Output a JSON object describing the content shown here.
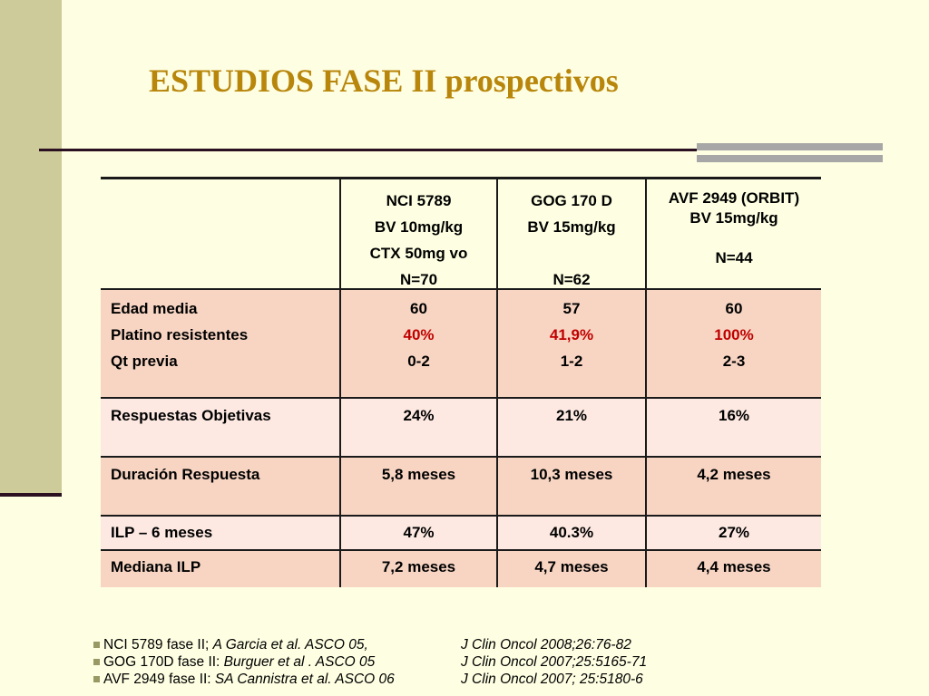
{
  "title": "ESTUDIOS FASE II prospectivos",
  "colors": {
    "background": "#fefee2",
    "title": "#b8860b",
    "sidebar": "#cccb99",
    "row_pink": "#f8d5c3",
    "row_light": "#fde9e2",
    "highlight": "#c00000"
  },
  "table": {
    "columns": [
      {
        "name": "NCI 5789",
        "dose": "BV 10mg/kg",
        "extra": "CTX 50mg vo",
        "n": "N=70"
      },
      {
        "name": "GOG 170 D",
        "dose": "BV 15mg/kg",
        "extra": "",
        "n": "N=62"
      },
      {
        "name": "AVF 2949 (ORBIT)",
        "dose": "BV 15mg/kg",
        "extra": "",
        "n": "N=44"
      }
    ],
    "demographics": {
      "labels": [
        "Edad media",
        "Platino resistentes",
        "Qt previa"
      ],
      "values": [
        [
          "60",
          "40%",
          "0-2"
        ],
        [
          "57",
          "41,9%",
          "1-2"
        ],
        [
          "60",
          "100%",
          "2-3"
        ]
      ]
    },
    "rows": [
      {
        "label": "Respuestas Objetivas",
        "values": [
          "24%",
          "21%",
          "16%"
        ]
      },
      {
        "label": "Duración Respuesta",
        "values": [
          "5,8 meses",
          "10,3 meses",
          "4,2 meses"
        ]
      },
      {
        "label": "ILP – 6 meses",
        "values": [
          "47%",
          "40.3%",
          "27%"
        ]
      },
      {
        "label": "Mediana ILP",
        "values": [
          "7,2 meses",
          "4,7 meses",
          "4,4 meses"
        ]
      }
    ]
  },
  "references": [
    {
      "text": "NCI 5789 fase II; ",
      "authors": "A Garcia et al. ASCO 05,",
      "journal": "J Clin Oncol 2008;26:76-82"
    },
    {
      "text": "GOG 170D fase II: ",
      "authors": "Burguer et al . ASCO 05",
      "journal": "J Clin Oncol 2007;25:5165-71"
    },
    {
      "text": "AVF 2949 fase II: ",
      "authors": "SA Cannistra et al. ASCO 06",
      "journal": "J Clin Oncol 2007; 25:5180-6"
    }
  ]
}
